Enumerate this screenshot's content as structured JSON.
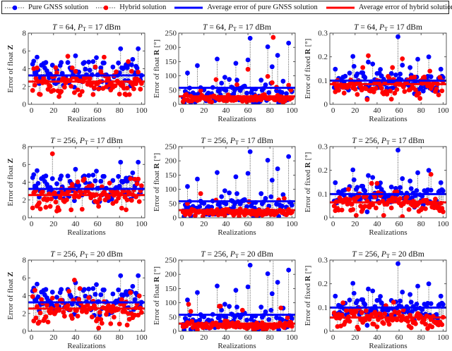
{
  "legend": {
    "items": [
      {
        "label": "Pure GNSS solution",
        "kind": "stem",
        "color": "#0000ff"
      },
      {
        "label": "Hybrid solution",
        "kind": "stem",
        "color": "#ff0000"
      },
      {
        "label": "Average error of pure GNSS solution",
        "kind": "line",
        "color": "#0000ff"
      },
      {
        "label": "Average error of hybrid solution",
        "kind": "line",
        "color": "#ff0000"
      }
    ]
  },
  "colors": {
    "gnss": "#0000ff",
    "hybrid": "#ff0000",
    "stem": "#222222"
  },
  "chart_data": [
    {
      "type": "scatter",
      "row": 0,
      "col": 0,
      "title_T": "64",
      "title_P": "17",
      "xlabel": "Realizations",
      "ylabel": "Error of float Z",
      "ylabel_bold": "Z",
      "unit": "",
      "ylim": [
        0,
        8
      ],
      "yticks": [
        0,
        2,
        4,
        6,
        8
      ],
      "xlim": [
        -3,
        103
      ],
      "xticks": [
        0,
        20,
        40,
        60,
        80,
        100
      ],
      "mean_gnss": 3.25,
      "mean_hybrid": 2.55,
      "seed_g": 11,
      "seed_h": 21,
      "gnss_peaks": {
        "2": 4.85,
        "5": 5.3,
        "9": 4.4,
        "13": 4.7,
        "27": 4.7,
        "33": 4.7,
        "40": 5.45,
        "47": 4.6,
        "48": 4.7,
        "56": 4.8,
        "59": 5.25,
        "65": 4.65,
        "66": 4.65,
        "81": 6.25,
        "82": 4.1,
        "92": 5.05,
        "97": 6.25,
        "89": 4.5
      },
      "hybrid_peaks": {
        "2": 4.0,
        "5": 4.1,
        "7": 1.15,
        "8": 1.1,
        "33": 5.4,
        "37": 4.1,
        "40": 3.7,
        "58": 4.2,
        "66": 5.3,
        "88": 4.8,
        "80": 1.15,
        "85": 1.15,
        "89": 1.1
      }
    },
    {
      "type": "scatter",
      "row": 0,
      "col": 1,
      "title_T": "64",
      "title_P": "17",
      "xlabel": "Realizations",
      "ylabel": "Error of float R",
      "ylabel_bold": "R",
      "unit": "[°]",
      "ylim": [
        0,
        250
      ],
      "yticks": [
        0,
        50,
        100,
        150,
        200,
        250
      ],
      "xlim": [
        -3,
        103
      ],
      "xticks": [
        0,
        20,
        40,
        60,
        80,
        100
      ],
      "mean_gnss": 58,
      "mean_hybrid": 28,
      "seed_g": 12,
      "seed_h": 22,
      "gnss_peaks": {
        "5": 110,
        "14": 136,
        "32": 159,
        "39": 95,
        "49": 144,
        "60": 156,
        "62": 232,
        "78": 202,
        "82": 132,
        "83": 260,
        "87": 172,
        "97": 215,
        "50": 85,
        "72": 85
      },
      "hybrid_peaks": {
        "31": 87,
        "50": 69,
        "60": 123,
        "78": 98,
        "82": 76,
        "83": 235,
        "86": 60,
        "97": 67,
        "99": 50,
        "17": 48
      }
    },
    {
      "type": "scatter",
      "row": 0,
      "col": 2,
      "title_T": "64",
      "title_P": "17",
      "xlabel": "Realizations",
      "ylabel": "Error of fixed R",
      "ylabel_bold": "R",
      "unit": "[°]",
      "ylim": [
        0,
        0.3
      ],
      "yticks": [
        0,
        0.1,
        0.2,
        0.3
      ],
      "xlim": [
        -3,
        103
      ],
      "xticks": [
        0,
        20,
        40,
        60,
        80,
        100
      ],
      "mean_gnss": 0.1,
      "mean_hybrid": 0.085,
      "seed_g": 13,
      "seed_h": 23,
      "gnss_peaks": {
        "2": 0.148,
        "18": 0.202,
        "19": 0.16,
        "32": 0.178,
        "36": 0.17,
        "43": 0.147,
        "59": 0.285,
        "63": 0.165,
        "70": 0.155,
        "77": 0.19,
        "87": 0.2,
        "98": 0.148,
        "31": 0.025
      },
      "hybrid_peaks": {
        "32": 0.205,
        "63": 0.192,
        "27": 0.155,
        "54": 0.155,
        "31": 0.02,
        "53": 0.022,
        "79": 0.025,
        "88": 0.14
      }
    },
    {
      "type": "scatter",
      "row": 1,
      "col": 0,
      "title_T": "256",
      "title_P": "17",
      "xlabel": "Realizations",
      "ylabel": "Error of float Z",
      "ylabel_bold": "Z",
      "unit": "",
      "ylim": [
        0,
        8
      ],
      "yticks": [
        0,
        2,
        4,
        6,
        8
      ],
      "xlim": [
        -3,
        103
      ],
      "xticks": [
        0,
        20,
        40,
        60,
        80,
        100
      ],
      "mean_gnss": 3.25,
      "mean_hybrid": 2.55,
      "seed_g": 11,
      "seed_h": 31,
      "gnss_peaks": {
        "2": 4.85,
        "5": 5.3,
        "9": 4.4,
        "13": 4.7,
        "27": 4.7,
        "33": 4.7,
        "40": 5.45,
        "47": 4.6,
        "48": 4.7,
        "56": 4.8,
        "59": 5.25,
        "65": 4.65,
        "66": 4.65,
        "81": 6.25,
        "82": 4.1,
        "92": 5.05,
        "97": 6.25,
        "89": 4.5
      },
      "hybrid_peaks": {
        "19": 7.2,
        "8": 1.0,
        "47": 4.2,
        "48": 4.35,
        "86": 0.9,
        "97": 4.35,
        "90": 4.4
      }
    },
    {
      "type": "scatter",
      "row": 1,
      "col": 1,
      "title_T": "256",
      "title_P": "17",
      "xlabel": "Realizations",
      "ylabel": "Error of float R",
      "ylabel_bold": "R",
      "unit": "[°]",
      "ylim": [
        0,
        250
      ],
      "yticks": [
        0,
        50,
        100,
        150,
        200,
        250
      ],
      "xlim": [
        -3,
        103
      ],
      "xticks": [
        0,
        20,
        40,
        60,
        80,
        100
      ],
      "mean_gnss": 58,
      "mean_hybrid": 27,
      "seed_g": 12,
      "seed_h": 32,
      "gnss_peaks": {
        "5": 110,
        "14": 136,
        "32": 159,
        "39": 95,
        "49": 144,
        "60": 156,
        "62": 232,
        "78": 202,
        "82": 132,
        "83": 260,
        "87": 172,
        "97": 215,
        "50": 85,
        "72": 85
      },
      "hybrid_peaks": {
        "17": 85,
        "5": 50,
        "31": 62,
        "88": 63,
        "93": 68,
        "61": 57
      }
    },
    {
      "type": "scatter",
      "row": 1,
      "col": 2,
      "title_T": "256",
      "title_P": "17",
      "xlabel": "Realizations",
      "ylabel": "Error of fixed R",
      "ylabel_bold": "R",
      "unit": "[°]",
      "ylim": [
        0,
        0.3
      ],
      "yticks": [
        0,
        0.1,
        0.2,
        0.3
      ],
      "xlim": [
        -3,
        103
      ],
      "xticks": [
        0,
        20,
        40,
        60,
        80,
        100
      ],
      "mean_gnss": 0.1,
      "mean_hybrid": 0.065,
      "seed_g": 13,
      "seed_h": 33,
      "gnss_peaks": {
        "2": 0.148,
        "18": 0.202,
        "19": 0.16,
        "32": 0.178,
        "36": 0.17,
        "43": 0.147,
        "59": 0.285,
        "63": 0.165,
        "70": 0.155,
        "77": 0.19,
        "87": 0.2,
        "98": 0.148,
        "31": 0.025
      },
      "hybrid_peaks": {
        "89": 0.183,
        "40": 0.145,
        "35": 0.145,
        "14": 0.12,
        "63": 0.005,
        "21": 0.01,
        "46": 0.01
      }
    },
    {
      "type": "scatter",
      "row": 2,
      "col": 0,
      "title_T": "256",
      "title_P": "20",
      "xlabel": "Realizations",
      "ylabel": "Error of float Z",
      "ylabel_bold": "Z",
      "unit": "",
      "ylim": [
        0,
        8
      ],
      "yticks": [
        0,
        2,
        4,
        6,
        8
      ],
      "xlim": [
        -3,
        103
      ],
      "xticks": [
        0,
        20,
        40,
        60,
        80,
        100
      ],
      "mean_gnss": 3.25,
      "mean_hybrid": 2.55,
      "seed_g": 11,
      "seed_h": 41,
      "gnss_peaks": {
        "2": 4.85,
        "5": 5.3,
        "9": 4.4,
        "13": 4.7,
        "27": 4.7,
        "33": 4.7,
        "40": 5.45,
        "47": 4.6,
        "48": 4.7,
        "56": 4.8,
        "59": 5.25,
        "65": 4.65,
        "66": 4.65,
        "81": 6.25,
        "82": 4.1,
        "92": 5.05,
        "97": 6.25,
        "89": 4.5
      },
      "hybrid_peaks": {
        "39": 5.75,
        "44": 4.8,
        "3": 4.6,
        "34": 4.5,
        "7": 1.05,
        "72": 0.85,
        "64": 0.9,
        "90": 4.35
      }
    },
    {
      "type": "scatter",
      "row": 2,
      "col": 1,
      "title_T": "256",
      "title_P": "20",
      "xlabel": "Realizations",
      "ylabel": "Error of float R",
      "ylabel_bold": "R",
      "unit": "[°]",
      "ylim": [
        0,
        250
      ],
      "yticks": [
        0,
        50,
        100,
        150,
        200,
        250
      ],
      "xlim": [
        -3,
        103
      ],
      "xticks": [
        0,
        20,
        40,
        60,
        80,
        100
      ],
      "mean_gnss": 58,
      "mean_hybrid": 27,
      "seed_g": 12,
      "seed_h": 42,
      "gnss_peaks": {
        "5": 110,
        "14": 136,
        "32": 159,
        "39": 95,
        "49": 144,
        "60": 156,
        "62": 232,
        "78": 202,
        "82": 132,
        "83": 260,
        "87": 172,
        "97": 215,
        "50": 85,
        "72": 85
      },
      "hybrid_peaks": {
        "6": 95,
        "34": 88,
        "35": 88,
        "90": 82,
        "55": 74,
        "8": 70,
        "96": 48
      }
    },
    {
      "type": "scatter",
      "row": 2,
      "col": 2,
      "title_T": "256",
      "title_P": "20",
      "xlabel": "Realizations",
      "ylabel": "Error of fixed R",
      "ylabel_bold": "R",
      "unit": "[°]",
      "ylim": [
        0,
        0.3
      ],
      "yticks": [
        0,
        0.1,
        0.2,
        0.3
      ],
      "xlim": [
        -3,
        103
      ],
      "xticks": [
        0,
        20,
        40,
        60,
        80,
        100
      ],
      "mean_gnss": 0.1,
      "mean_hybrid": 0.058,
      "seed_g": 13,
      "seed_h": 43,
      "gnss_peaks": {
        "2": 0.148,
        "18": 0.202,
        "19": 0.16,
        "32": 0.178,
        "36": 0.17,
        "43": 0.147,
        "59": 0.285,
        "63": 0.165,
        "70": 0.155,
        "77": 0.19,
        "87": 0.2,
        "98": 0.148,
        "31": 0.025
      },
      "hybrid_peaks": {
        "55": 0.122,
        "9": 0.12,
        "48": 0.108,
        "4": 0.02,
        "86": 0.012,
        "71": 0.015
      }
    }
  ]
}
